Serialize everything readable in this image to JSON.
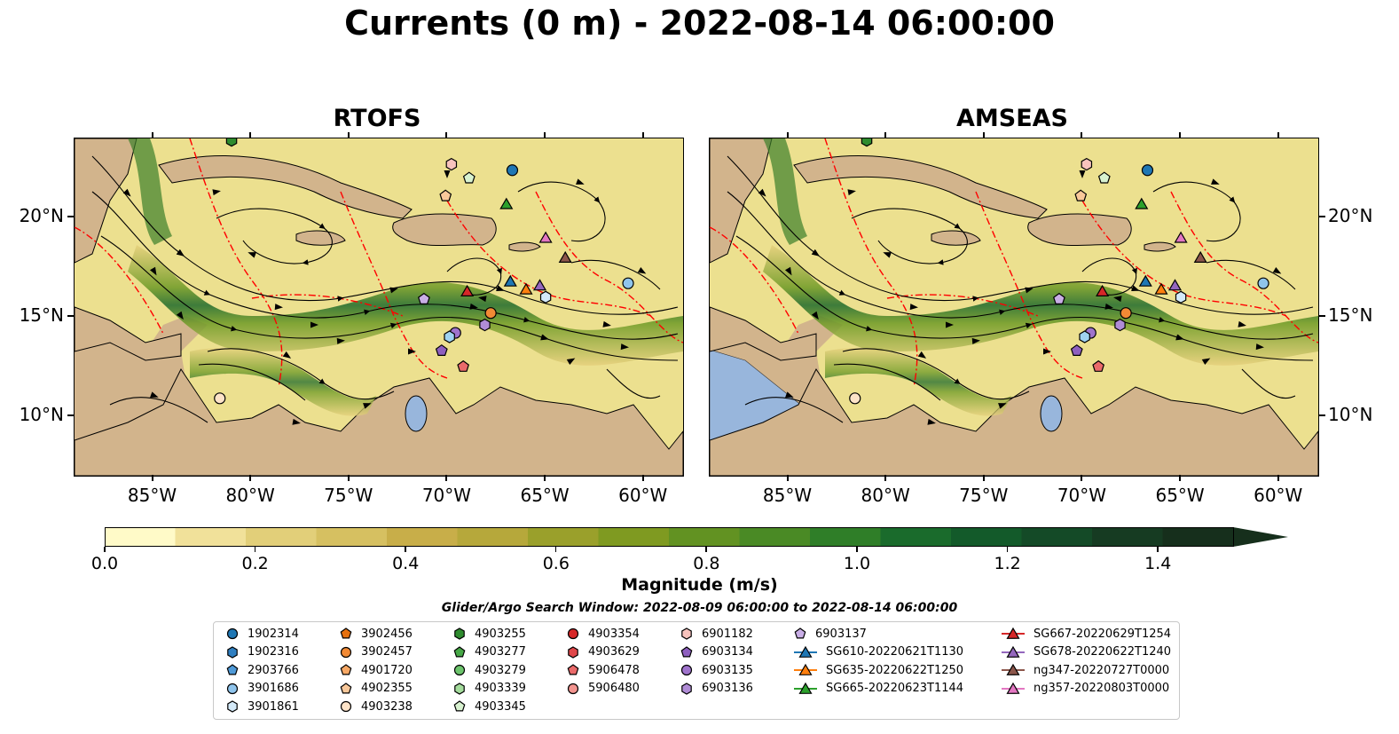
{
  "title": "Currents (0 m) - 2022-08-14 06:00:00",
  "panels": [
    {
      "name": "RTOFS"
    },
    {
      "name": "AMSEAS"
    }
  ],
  "lat_ticks": [
    "20°N",
    "15°N",
    "10°N"
  ],
  "lon_ticks": [
    "85°W",
    "80°W",
    "75°W",
    "70°W",
    "65°W",
    "60°W"
  ],
  "map_extent": {
    "lon": [
      -89.0,
      -58.0
    ],
    "lat": [
      7.0,
      24.0
    ]
  },
  "colorbar": {
    "label": "Magnitude (m/s)",
    "min": 0.0,
    "max": 1.5,
    "extend": "max",
    "ticks": [
      "0.0",
      "0.2",
      "0.4",
      "0.6",
      "0.8",
      "1.0",
      "1.2",
      "1.4"
    ],
    "colors": [
      "#fffac8",
      "#f1e19a",
      "#e2cf79",
      "#d6c061",
      "#c8ae49",
      "#b6a83b",
      "#9aa02b",
      "#7f9a21",
      "#629222",
      "#4a8a25",
      "#2f7e28",
      "#1a6b2c",
      "#135a2a",
      "#144a27",
      "#163b22",
      "#162f1c"
    ]
  },
  "search_window": "Glider/Argo Search Window: 2022-08-09 06:00:00 to 2022-08-14 06:00:00",
  "legend": [
    {
      "label": "1902314",
      "marker": "circle",
      "color": "#1f77b4"
    },
    {
      "label": "1902316",
      "marker": "hexagon",
      "color": "#2f7fc1"
    },
    {
      "label": "2903766",
      "marker": "pentagon",
      "color": "#4f9ad8"
    },
    {
      "label": "3901686",
      "marker": "circle",
      "color": "#8fc4ec"
    },
    {
      "label": "3901861",
      "marker": "hexagon",
      "color": "#d4eaf9"
    },
    {
      "label": "3902456",
      "marker": "pentagon",
      "color": "#e6700e"
    },
    {
      "label": "3902457",
      "marker": "circle",
      "color": "#f28a35"
    },
    {
      "label": "4901720",
      "marker": "pentagon",
      "color": "#f7a865"
    },
    {
      "label": "4902355",
      "marker": "pentagon",
      "color": "#f9c89a"
    },
    {
      "label": "4903238",
      "marker": "circle",
      "color": "#fde3c8"
    },
    {
      "label": "4903255",
      "marker": "hexagon",
      "color": "#2e8b2e"
    },
    {
      "label": "4903277",
      "marker": "pentagon",
      "color": "#46a846"
    },
    {
      "label": "4903279",
      "marker": "circle",
      "color": "#6cc46c"
    },
    {
      "label": "4903339",
      "marker": "hexagon",
      "color": "#a4dc9c"
    },
    {
      "label": "4903345",
      "marker": "pentagon",
      "color": "#d8f2d0"
    },
    {
      "label": "4903354",
      "marker": "circle",
      "color": "#d62728"
    },
    {
      "label": "4903629",
      "marker": "hexagon",
      "color": "#e0474a"
    },
    {
      "label": "5906478",
      "marker": "pentagon",
      "color": "#ea6a6a"
    },
    {
      "label": "5906480",
      "marker": "circle",
      "color": "#f2948f"
    },
    {
      "label": "6901182",
      "marker": "hexagon",
      "color": "#f8c3bd"
    },
    {
      "label": "6903134",
      "marker": "pentagon",
      "color": "#8e5fbf"
    },
    {
      "label": "6903135",
      "marker": "circle",
      "color": "#9f73cc"
    },
    {
      "label": "6903136",
      "marker": "hexagon",
      "color": "#b08cd6"
    },
    {
      "label": "6903137",
      "marker": "pentagon",
      "color": "#c9aee6"
    },
    {
      "label": "SG610-20220621T1130",
      "marker": "triangle-line",
      "color": "#1f77b4"
    },
    {
      "label": "SG635-20220622T1250",
      "marker": "triangle-line",
      "color": "#ff7f0e"
    },
    {
      "label": "SG665-20220623T1144",
      "marker": "triangle-line",
      "color": "#2ca02c"
    },
    {
      "label": "SG667-20220629T1254",
      "marker": "triangle-line",
      "color": "#d62728"
    },
    {
      "label": "SG678-20220622T1240",
      "marker": "triangle-line",
      "color": "#9467bd"
    },
    {
      "label": "ng347-20220727T0000",
      "marker": "triangle-line",
      "color": "#8c564b"
    },
    {
      "label": "ng357-20220803T0000",
      "marker": "triangle-line",
      "color": "#e377c2"
    }
  ],
  "markers": [
    {
      "id": "1902314",
      "lon": -66.7,
      "lat": 22.4,
      "marker": "circle",
      "color": "#1f77b4"
    },
    {
      "id": "4903345",
      "lon": -68.9,
      "lat": 22.0,
      "marker": "pentagon",
      "color": "#d8f2d0"
    },
    {
      "id": "6901182",
      "lon": -69.8,
      "lat": 22.7,
      "marker": "hexagon",
      "color": "#f8c3bd"
    },
    {
      "id": "4902355",
      "lon": -70.1,
      "lat": 21.1,
      "marker": "pentagon",
      "color": "#f9c89a"
    },
    {
      "id": "6903137",
      "lon": -71.2,
      "lat": 15.9,
      "marker": "pentagon",
      "color": "#c9aee6"
    },
    {
      "id": "3901686",
      "lon": -60.8,
      "lat": 16.7,
      "marker": "circle",
      "color": "#8fc4ec"
    },
    {
      "id": "3901861",
      "lon": -65.0,
      "lat": 16.0,
      "marker": "hexagon",
      "color": "#d4eaf9"
    },
    {
      "id": "3902457",
      "lon": -67.8,
      "lat": 15.2,
      "marker": "circle",
      "color": "#f28a35"
    },
    {
      "id": "6903136",
      "lon": -68.1,
      "lat": 14.6,
      "marker": "hexagon",
      "color": "#b08cd6"
    },
    {
      "id": "6903135",
      "lon": -69.6,
      "lat": 14.2,
      "marker": "circle",
      "color": "#9f73cc"
    },
    {
      "id": "3901861b",
      "lon": -69.9,
      "lat": 14.0,
      "marker": "hexagon",
      "color": "#9fd3f2"
    },
    {
      "id": "6903134",
      "lon": -70.3,
      "lat": 13.3,
      "marker": "pentagon",
      "color": "#8e5fbf"
    },
    {
      "id": "5906478",
      "lon": -69.2,
      "lat": 12.5,
      "marker": "pentagon",
      "color": "#ea6a6a"
    },
    {
      "id": "4903238",
      "lon": -81.6,
      "lat": 10.9,
      "marker": "circle",
      "color": "#fde3c8"
    },
    {
      "id": "4903255",
      "lon": -81.0,
      "lat": 23.9,
      "marker": "hexagon",
      "color": "#2e8b2e"
    },
    {
      "id": "SG665",
      "lon": -67.0,
      "lat": 20.7,
      "marker": "triangle",
      "color": "#2ca02c"
    },
    {
      "id": "ng357",
      "lon": -65.0,
      "lat": 19.0,
      "marker": "triangle",
      "color": "#e377c2"
    },
    {
      "id": "ng347",
      "lon": -64.0,
      "lat": 18.0,
      "marker": "triangle",
      "color": "#8c564b"
    },
    {
      "id": "SG610",
      "lon": -66.8,
      "lat": 16.8,
      "marker": "triangle",
      "color": "#1f77b4"
    },
    {
      "id": "SG678",
      "lon": -65.3,
      "lat": 16.6,
      "marker": "triangle",
      "color": "#9467bd"
    },
    {
      "id": "SG635",
      "lon": -66.0,
      "lat": 16.4,
      "marker": "triangle",
      "color": "#ff7f0e"
    },
    {
      "id": "SG667",
      "lon": -69.0,
      "lat": 16.3,
      "marker": "triangle",
      "color": "#d62728"
    }
  ]
}
